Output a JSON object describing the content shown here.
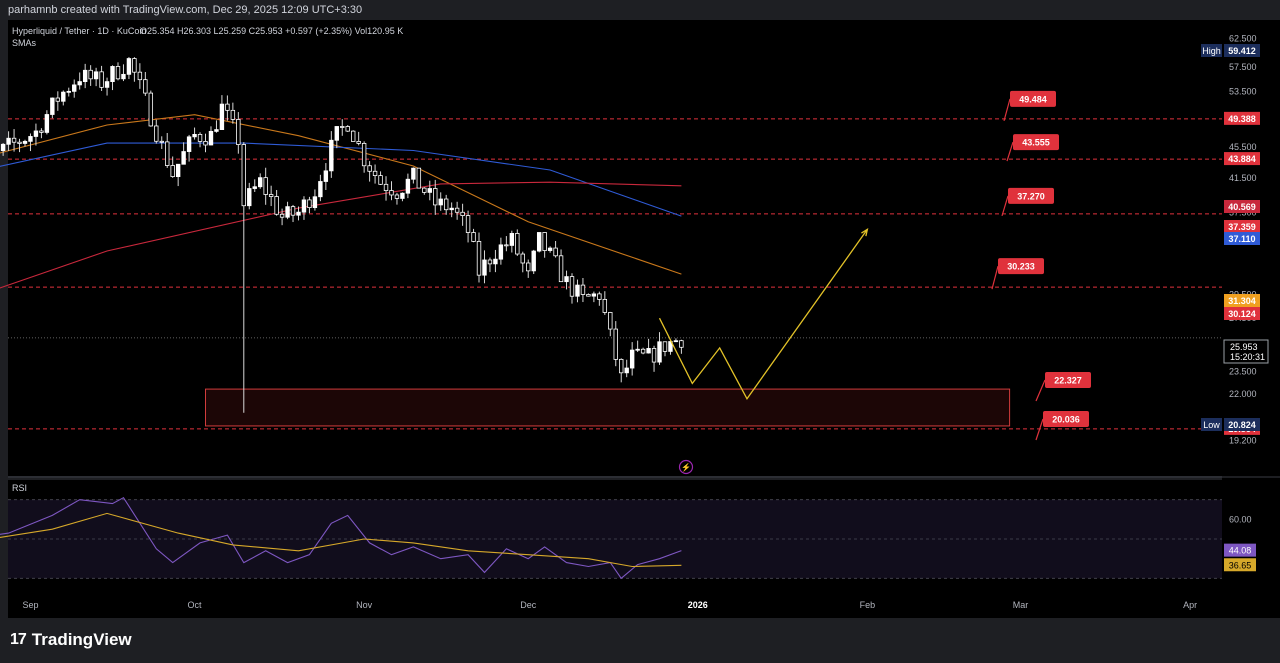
{
  "header": {
    "attribution": "parhamnb created with TradingView.com, Dec 29, 2025 12:09 UTC+3:30"
  },
  "legend": {
    "symbol": "Hyperliquid / Tether · 1D · KuCoin",
    "ohlc": "O25.354  H26.303  L25.259  C25.953  +0.597 (+2.35%)  Vol120.95 K",
    "indicator": "SMAs"
  },
  "rsi_label": "RSI",
  "footer": {
    "brand": "TradingView"
  },
  "colors": {
    "background": "#000000",
    "bullish": "#ffffff",
    "bearish": "#ffffff",
    "sma_orange": "#c9781b",
    "sma_blue": "#2f5bd6",
    "sma_red": "#c8283c",
    "projection": "#e3c228",
    "zone_border": "#d23c3c",
    "zone_fill": "#1c0606",
    "level_tag": "#e0323c",
    "rsi_line": "#7e57c2",
    "rsi_ma": "#d6a82a"
  },
  "chart_data": [
    {
      "type": "candlestick",
      "title": "Hyperliquid / Tether · 1D · KuCoin",
      "ylim": [
        17.5,
        64.5
      ],
      "yscale": "log",
      "price_ticks": [
        "62.500",
        "57.500",
        "53.500",
        "49.500",
        "45.500",
        "41.500",
        "37.500",
        "34.500",
        "29.500",
        "27.500",
        "23.500",
        "22.000",
        "19.200"
      ],
      "x_ticks": [
        "Sep",
        "Oct",
        "Nov",
        "Dec",
        "2026",
        "Feb",
        "Mar",
        "Apr"
      ],
      "last_close": "25.953",
      "countdown": "15:20:31",
      "high_label": {
        "label": "High",
        "value": "59.412"
      },
      "low_label": {
        "label": "Low",
        "value": "20.824"
      },
      "axis_tags": [
        {
          "value": "49.388",
          "color": "#e0323c"
        },
        {
          "value": "43.884",
          "color": "#e0323c"
        },
        {
          "value": "40.569",
          "color": "#c8283c"
        },
        {
          "value": "37.359",
          "color": "#e0323c"
        },
        {
          "value": "37.110",
          "color": "#2f5bd6"
        },
        {
          "value": "31.304",
          "color": "#f0a020"
        },
        {
          "value": "30.124",
          "color": "#e0323c"
        },
        {
          "value": "19.864",
          "color": "#e0323c"
        }
      ],
      "levels": [
        {
          "price": 49.388,
          "callout": "49.484"
        },
        {
          "price": 43.884,
          "callout": "43.555"
        },
        {
          "price": 37.359,
          "callout": "37.270"
        },
        {
          "price": 30.124,
          "callout": "30.233"
        }
      ],
      "zone": {
        "from_date": "2025-10-03",
        "to_date": "2026-02-27",
        "top": 22.327,
        "bottom": 20.036
      },
      "zone_callouts": [
        "22.327",
        "20.036"
      ],
      "projection": [
        {
          "date": "2025-12-25",
          "price": 27.5
        },
        {
          "date": "2025-12-31",
          "price": 22.7
        },
        {
          "date": "2026-01-05",
          "price": 25.2
        },
        {
          "date": "2026-01-10",
          "price": 21.7
        },
        {
          "date": "2026-02-01",
          "price": 35.7
        }
      ],
      "series": [
        {
          "kind": "candles",
          "name": "Hyperliquid / Tether",
          "anchors": [
            [
              "2025-08-20",
              44.5
            ],
            [
              "2025-08-25",
              44.0
            ],
            [
              "2025-08-28",
              45.5
            ],
            [
              "2025-09-02",
              47.5
            ],
            [
              "2025-09-06",
              52.5
            ],
            [
              "2025-09-10",
              56.0
            ],
            [
              "2025-09-14",
              55.0
            ],
            [
              "2025-09-17",
              57.0
            ],
            [
              "2025-09-19",
              58.5
            ],
            [
              "2025-09-22",
              52.0
            ],
            [
              "2025-09-25",
              45.5
            ],
            [
              "2025-09-27",
              42.0
            ],
            [
              "2025-10-01",
              47.0
            ],
            [
              "2025-10-04",
              47.0
            ],
            [
              "2025-10-06",
              51.0
            ],
            [
              "2025-10-09",
              46.5
            ],
            [
              "2025-10-10",
              38.5
            ],
            [
              "2025-10-13",
              41.0
            ],
            [
              "2025-10-17",
              37.0
            ],
            [
              "2025-10-20",
              37.5
            ],
            [
              "2025-10-23",
              40.0
            ],
            [
              "2025-10-27",
              47.0
            ],
            [
              "2025-10-29",
              49.0
            ],
            [
              "2025-11-01",
              44.0
            ],
            [
              "2025-11-04",
              41.0
            ],
            [
              "2025-11-07",
              40.0
            ],
            [
              "2025-11-10",
              41.5
            ],
            [
              "2025-11-14",
              38.5
            ],
            [
              "2025-11-17",
              38.0
            ],
            [
              "2025-11-20",
              35.5
            ],
            [
              "2025-11-22",
              31.5
            ],
            [
              "2025-11-25",
              33.5
            ],
            [
              "2025-11-28",
              34.5
            ],
            [
              "2025-12-01",
              31.0
            ],
            [
              "2025-12-03",
              34.5
            ],
            [
              "2025-12-05",
              33.0
            ],
            [
              "2025-12-08",
              30.5
            ],
            [
              "2025-12-11",
              29.0
            ],
            [
              "2025-12-14",
              29.5
            ],
            [
              "2025-12-16",
              26.0
            ],
            [
              "2025-12-18",
              23.0
            ],
            [
              "2025-12-20",
              24.5
            ],
            [
              "2025-12-23",
              24.5
            ],
            [
              "2025-12-26",
              25.4
            ],
            [
              "2025-12-29",
              25.953
            ]
          ],
          "wick_low": {
            "date": "2025-10-10",
            "price": 20.824
          }
        },
        {
          "kind": "sma",
          "name": "SMA (orange)",
          "points": [
            [
              "2025-08-20",
              43.5
            ],
            [
              "2025-09-15",
              48.5
            ],
            [
              "2025-10-01",
              50.0
            ],
            [
              "2025-10-20",
              47.0
            ],
            [
              "2025-11-10",
              43.0
            ],
            [
              "2025-12-01",
              36.5
            ],
            [
              "2025-12-29",
              31.304
            ]
          ]
        },
        {
          "kind": "sma",
          "name": "SMA (blue)",
          "points": [
            [
              "2025-08-20",
              42.0
            ],
            [
              "2025-09-15",
              46.0
            ],
            [
              "2025-10-10",
              46.0
            ],
            [
              "2025-11-10",
              45.0
            ],
            [
              "2025-12-05",
              42.5
            ],
            [
              "2025-12-29",
              37.11
            ]
          ]
        },
        {
          "kind": "sma",
          "name": "SMA (red)",
          "points": [
            [
              "2025-08-20",
              29.0
            ],
            [
              "2025-09-15",
              33.5
            ],
            [
              "2025-10-20",
              38.0
            ],
            [
              "2025-11-15",
              40.8
            ],
            [
              "2025-12-05",
              41.0
            ],
            [
              "2025-12-29",
              40.569
            ]
          ]
        }
      ]
    },
    {
      "type": "line",
      "title": "RSI",
      "ylim": [
        20,
        80
      ],
      "y_ticks": [
        "60.00"
      ],
      "bands": [
        70,
        50,
        30
      ],
      "last_values": [
        {
          "value": "44.08",
          "color": "#7e57c2"
        },
        {
          "value": "36.65",
          "color": "#d6a82a"
        }
      ],
      "series": [
        {
          "kind": "rsi",
          "points": [
            [
              "2025-08-20",
              50
            ],
            [
              "2025-08-28",
              53
            ],
            [
              "2025-09-05",
              62
            ],
            [
              "2025-09-10",
              70
            ],
            [
              "2025-09-16",
              68
            ],
            [
              "2025-09-18",
              71
            ],
            [
              "2025-09-24",
              45
            ],
            [
              "2025-09-27",
              38
            ],
            [
              "2025-10-02",
              48
            ],
            [
              "2025-10-07",
              52
            ],
            [
              "2025-10-10",
              38
            ],
            [
              "2025-10-14",
              44
            ],
            [
              "2025-10-18",
              38
            ],
            [
              "2025-10-22",
              42
            ],
            [
              "2025-10-26",
              58
            ],
            [
              "2025-10-29",
              62
            ],
            [
              "2025-11-02",
              48
            ],
            [
              "2025-11-06",
              42
            ],
            [
              "2025-11-10",
              46
            ],
            [
              "2025-11-15",
              40
            ],
            [
              "2025-11-20",
              42
            ],
            [
              "2025-11-23",
              33
            ],
            [
              "2025-11-27",
              45
            ],
            [
              "2025-12-01",
              40
            ],
            [
              "2025-12-04",
              46
            ],
            [
              "2025-12-08",
              38
            ],
            [
              "2025-12-12",
              36
            ],
            [
              "2025-12-16",
              38
            ],
            [
              "2025-12-18",
              30
            ],
            [
              "2025-12-21",
              37
            ],
            [
              "2025-12-25",
              40
            ],
            [
              "2025-12-29",
              44.08
            ]
          ]
        },
        {
          "kind": "rsi_ma",
          "points": [
            [
              "2025-08-20",
              48
            ],
            [
              "2025-09-05",
              55
            ],
            [
              "2025-09-15",
              63
            ],
            [
              "2025-09-28",
              53
            ],
            [
              "2025-10-08",
              47
            ],
            [
              "2025-10-20",
              44
            ],
            [
              "2025-11-01",
              50
            ],
            [
              "2025-11-10",
              48
            ],
            [
              "2025-11-20",
              44
            ],
            [
              "2025-12-01",
              42
            ],
            [
              "2025-12-12",
              40
            ],
            [
              "2025-12-20",
              36
            ],
            [
              "2025-12-29",
              36.65
            ]
          ]
        }
      ]
    }
  ]
}
